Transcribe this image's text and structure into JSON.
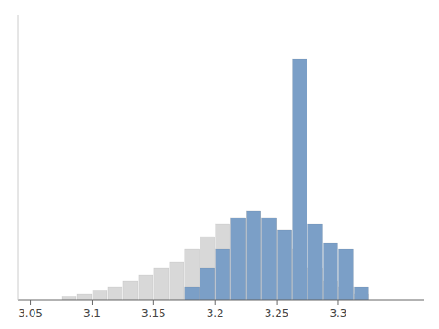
{
  "chart_data": {
    "type": "histogram",
    "series": [
      {
        "color": "#d8d8d8",
        "bins": [
          3.075,
          3.0875,
          3.1,
          3.1125,
          3.125,
          3.1375,
          3.15,
          3.1625,
          3.175,
          3.1875,
          3.2,
          3.2125,
          3.225,
          3.2375,
          3.25,
          3.2625,
          3.275,
          3.2875,
          3.3,
          3.3125,
          3.325
        ],
        "values": [
          0.5,
          1,
          1.5,
          2,
          3,
          4,
          5,
          6,
          8,
          10,
          12,
          13,
          14,
          13,
          11,
          8,
          5,
          3,
          2,
          1
        ]
      },
      {
        "color": "#7b9fc7",
        "bins": [
          3.175,
          3.1875,
          3.2,
          3.2125,
          3.225,
          3.2375,
          3.25,
          3.2625,
          3.275,
          3.2875,
          3.3,
          3.3125,
          3.325
        ],
        "values": [
          2,
          5,
          8,
          13,
          14,
          13,
          11,
          38,
          12,
          9,
          8,
          2
        ]
      }
    ],
    "xlim": [
      3.04,
      3.37
    ],
    "ylim": [
      0,
      45
    ],
    "xticks": [
      3.05,
      3.1,
      3.15,
      3.2,
      3.25,
      3.3
    ],
    "tick_labels": "x",
    "grid": false
  }
}
